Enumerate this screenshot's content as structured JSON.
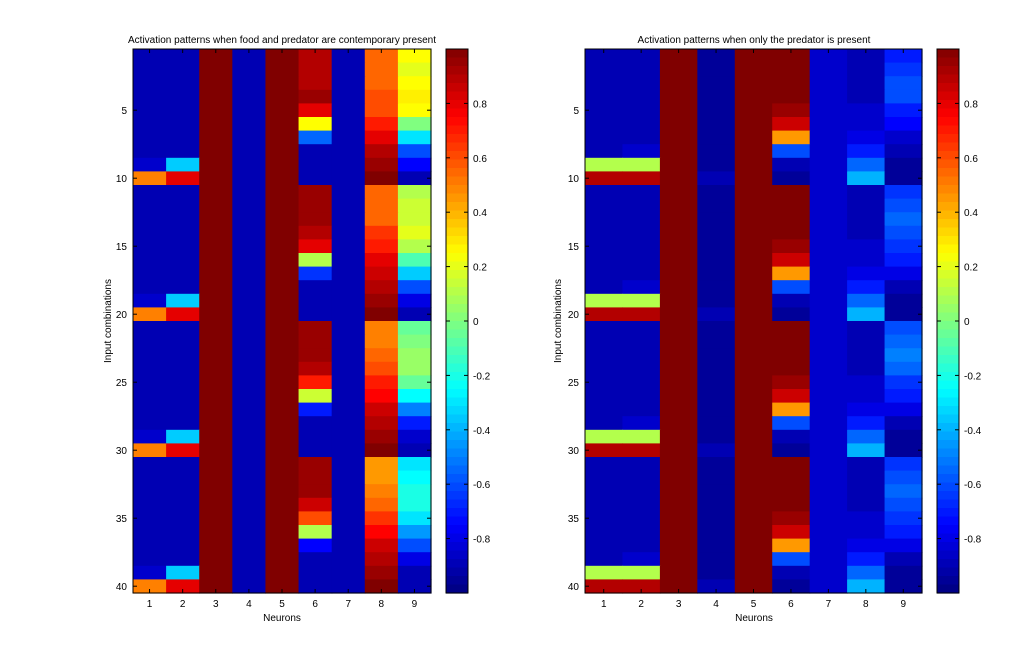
{
  "chart_data": [
    {
      "type": "heatmap",
      "title": "Activation patterns when food and predator are contemporary present",
      "xlabel": "Neurons",
      "ylabel": "Input combinations",
      "x": [
        1,
        2,
        3,
        4,
        5,
        6,
        7,
        8,
        9
      ],
      "y_ticks": [
        5,
        10,
        15,
        20,
        25,
        30,
        35,
        40
      ],
      "clim": [
        -1,
        1
      ],
      "colorbar_ticks": [
        -0.8,
        -0.6,
        -0.4,
        -0.2,
        0,
        0.2,
        0.4,
        0.6,
        0.8
      ],
      "colormap": "jet",
      "values": [
        [
          -0.9,
          -0.9,
          1,
          -0.9,
          1,
          0.9,
          -0.9,
          0.55,
          0.25
        ],
        [
          -0.9,
          -0.9,
          1,
          -0.9,
          1,
          0.9,
          -0.9,
          0.55,
          0.2
        ],
        [
          -0.9,
          -0.9,
          1,
          -0.9,
          1,
          0.9,
          -0.9,
          0.55,
          0.25
        ],
        [
          -0.9,
          -0.9,
          1,
          -0.9,
          1,
          0.95,
          -0.9,
          0.6,
          0.28
        ],
        [
          -0.9,
          -0.9,
          1,
          -0.9,
          1,
          0.8,
          -0.9,
          0.6,
          0.25
        ],
        [
          -0.9,
          -0.9,
          1,
          -0.9,
          1,
          0.25,
          -0.9,
          0.7,
          0.0
        ],
        [
          -0.9,
          -0.9,
          1,
          -0.9,
          1,
          -0.55,
          -0.9,
          0.8,
          -0.3
        ],
        [
          -0.9,
          -0.9,
          1,
          -0.9,
          1,
          -0.9,
          -0.9,
          0.9,
          -0.6
        ],
        [
          -0.85,
          -0.35,
          1,
          -0.9,
          1,
          -0.9,
          -0.9,
          0.95,
          -0.75
        ],
        [
          0.5,
          0.8,
          1,
          -0.9,
          1,
          -0.9,
          -0.9,
          1,
          -0.9
        ],
        [
          -0.9,
          -0.9,
          1,
          -0.9,
          1,
          0.95,
          -0.9,
          0.55,
          0.1
        ],
        [
          -0.9,
          -0.9,
          1,
          -0.9,
          1,
          0.95,
          -0.9,
          0.55,
          0.15
        ],
        [
          -0.9,
          -0.9,
          1,
          -0.9,
          1,
          0.95,
          -0.9,
          0.55,
          0.15
        ],
        [
          -0.9,
          -0.9,
          1,
          -0.9,
          1,
          0.9,
          -0.9,
          0.65,
          0.2
        ],
        [
          -0.9,
          -0.9,
          1,
          -0.9,
          1,
          0.8,
          -0.9,
          0.7,
          0.1
        ],
        [
          -0.9,
          -0.9,
          1,
          -0.9,
          1,
          0.1,
          -0.9,
          0.8,
          -0.1
        ],
        [
          -0.9,
          -0.9,
          1,
          -0.9,
          1,
          -0.65,
          -0.9,
          0.85,
          -0.35
        ],
        [
          -0.9,
          -0.9,
          1,
          -0.9,
          1,
          -0.9,
          -0.9,
          0.9,
          -0.6
        ],
        [
          -0.85,
          -0.35,
          1,
          -0.9,
          1,
          -0.9,
          -0.9,
          0.95,
          -0.8
        ],
        [
          0.5,
          0.8,
          1,
          -0.9,
          1,
          -0.9,
          -0.9,
          1,
          -0.9
        ],
        [
          -0.9,
          -0.9,
          1,
          -0.9,
          1,
          0.95,
          -0.9,
          0.5,
          -0.05
        ],
        [
          -0.9,
          -0.9,
          1,
          -0.9,
          1,
          0.95,
          -0.9,
          0.5,
          0.0
        ],
        [
          -0.9,
          -0.9,
          1,
          -0.9,
          1,
          0.95,
          -0.9,
          0.55,
          0.05
        ],
        [
          -0.9,
          -0.9,
          1,
          -0.9,
          1,
          0.9,
          -0.9,
          0.6,
          0.05
        ],
        [
          -0.9,
          -0.9,
          1,
          -0.9,
          1,
          0.7,
          -0.9,
          0.7,
          -0.05
        ],
        [
          -0.9,
          -0.9,
          1,
          -0.9,
          1,
          0.15,
          -0.9,
          0.75,
          -0.25
        ],
        [
          -0.9,
          -0.9,
          1,
          -0.9,
          1,
          -0.7,
          -0.9,
          0.85,
          -0.5
        ],
        [
          -0.9,
          -0.9,
          1,
          -0.9,
          1,
          -0.9,
          -0.9,
          0.9,
          -0.7
        ],
        [
          -0.85,
          -0.35,
          1,
          -0.9,
          1,
          -0.9,
          -0.9,
          0.95,
          -0.85
        ],
        [
          0.5,
          0.8,
          1,
          -0.9,
          1,
          -0.9,
          -0.9,
          1,
          -0.9
        ],
        [
          -0.9,
          -0.9,
          1,
          -0.9,
          1,
          0.95,
          -0.9,
          0.45,
          -0.3
        ],
        [
          -0.9,
          -0.9,
          1,
          -0.9,
          1,
          0.95,
          -0.9,
          0.45,
          -0.25
        ],
        [
          -0.9,
          -0.9,
          1,
          -0.9,
          1,
          0.95,
          -0.9,
          0.5,
          -0.2
        ],
        [
          -0.9,
          -0.9,
          1,
          -0.9,
          1,
          0.85,
          -0.9,
          0.55,
          -0.2
        ],
        [
          -0.9,
          -0.9,
          1,
          -0.9,
          1,
          0.6,
          -0.9,
          0.65,
          -0.3
        ],
        [
          -0.9,
          -0.9,
          1,
          -0.9,
          1,
          0.1,
          -0.9,
          0.75,
          -0.45
        ],
        [
          -0.9,
          -0.9,
          1,
          -0.9,
          1,
          -0.75,
          -0.9,
          0.85,
          -0.6
        ],
        [
          -0.9,
          -0.9,
          1,
          -0.9,
          1,
          -0.9,
          -0.9,
          0.9,
          -0.8
        ],
        [
          -0.85,
          -0.35,
          1,
          -0.9,
          1,
          -0.9,
          -0.9,
          0.95,
          -0.9
        ],
        [
          0.5,
          0.8,
          1,
          -0.9,
          1,
          -0.9,
          -0.9,
          1,
          -0.9
        ]
      ]
    },
    {
      "type": "heatmap",
      "title": "Activation patterns when only the predator is present",
      "xlabel": "Neurons",
      "ylabel": "Input combinations",
      "x": [
        1,
        2,
        3,
        4,
        5,
        6,
        7,
        8,
        9
      ],
      "y_ticks": [
        5,
        10,
        15,
        20,
        25,
        30,
        35,
        40
      ],
      "clim": [
        -1,
        1
      ],
      "colorbar_ticks": [
        -0.8,
        -0.6,
        -0.4,
        -0.2,
        0,
        0.2,
        0.4,
        0.6,
        0.8
      ],
      "colormap": "jet",
      "values": [
        [
          -0.9,
          -0.9,
          1,
          -0.95,
          1,
          1,
          -0.85,
          -0.9,
          -0.7
        ],
        [
          -0.9,
          -0.9,
          1,
          -0.95,
          1,
          1,
          -0.85,
          -0.9,
          -0.65
        ],
        [
          -0.9,
          -0.9,
          1,
          -0.95,
          1,
          1,
          -0.85,
          -0.9,
          -0.6
        ],
        [
          -0.9,
          -0.9,
          1,
          -0.95,
          1,
          1,
          -0.85,
          -0.9,
          -0.6
        ],
        [
          -0.9,
          -0.9,
          1,
          -0.95,
          1,
          0.95,
          -0.85,
          -0.85,
          -0.7
        ],
        [
          -0.9,
          -0.9,
          1,
          -0.95,
          1,
          0.85,
          -0.85,
          -0.85,
          -0.75
        ],
        [
          -0.9,
          -0.9,
          1,
          -0.95,
          1,
          0.45,
          -0.85,
          -0.8,
          -0.85
        ],
        [
          -0.9,
          -0.85,
          1,
          -0.95,
          1,
          -0.6,
          -0.85,
          -0.7,
          -0.9
        ],
        [
          0.1,
          0.1,
          1,
          -0.95,
          1,
          -0.9,
          -0.85,
          -0.55,
          -0.95
        ],
        [
          0.9,
          0.9,
          1,
          -0.9,
          1,
          -0.95,
          -0.85,
          -0.4,
          -0.95
        ],
        [
          -0.9,
          -0.9,
          1,
          -0.95,
          1,
          1,
          -0.85,
          -0.9,
          -0.65
        ],
        [
          -0.9,
          -0.9,
          1,
          -0.95,
          1,
          1,
          -0.85,
          -0.9,
          -0.6
        ],
        [
          -0.9,
          -0.9,
          1,
          -0.95,
          1,
          1,
          -0.85,
          -0.9,
          -0.55
        ],
        [
          -0.9,
          -0.9,
          1,
          -0.95,
          1,
          1,
          -0.85,
          -0.9,
          -0.6
        ],
        [
          -0.9,
          -0.9,
          1,
          -0.95,
          1,
          0.95,
          -0.85,
          -0.85,
          -0.65
        ],
        [
          -0.9,
          -0.9,
          1,
          -0.95,
          1,
          0.85,
          -0.85,
          -0.85,
          -0.7
        ],
        [
          -0.9,
          -0.9,
          1,
          -0.95,
          1,
          0.45,
          -0.85,
          -0.8,
          -0.8
        ],
        [
          -0.9,
          -0.85,
          1,
          -0.95,
          1,
          -0.6,
          -0.85,
          -0.7,
          -0.9
        ],
        [
          0.1,
          0.1,
          1,
          -0.95,
          1,
          -0.9,
          -0.85,
          -0.55,
          -0.95
        ],
        [
          0.9,
          0.9,
          1,
          -0.9,
          1,
          -0.95,
          -0.85,
          -0.4,
          -0.95
        ],
        [
          -0.9,
          -0.9,
          1,
          -0.95,
          1,
          1,
          -0.85,
          -0.9,
          -0.6
        ],
        [
          -0.9,
          -0.9,
          1,
          -0.95,
          1,
          1,
          -0.85,
          -0.9,
          -0.55
        ],
        [
          -0.9,
          -0.9,
          1,
          -0.95,
          1,
          1,
          -0.85,
          -0.9,
          -0.5
        ],
        [
          -0.9,
          -0.9,
          1,
          -0.95,
          1,
          1,
          -0.85,
          -0.9,
          -0.55
        ],
        [
          -0.9,
          -0.9,
          1,
          -0.95,
          1,
          0.95,
          -0.85,
          -0.85,
          -0.65
        ],
        [
          -0.9,
          -0.9,
          1,
          -0.95,
          1,
          0.85,
          -0.85,
          -0.85,
          -0.7
        ],
        [
          -0.9,
          -0.9,
          1,
          -0.95,
          1,
          0.45,
          -0.85,
          -0.8,
          -0.8
        ],
        [
          -0.9,
          -0.85,
          1,
          -0.95,
          1,
          -0.6,
          -0.85,
          -0.7,
          -0.9
        ],
        [
          0.1,
          0.1,
          1,
          -0.95,
          1,
          -0.9,
          -0.85,
          -0.55,
          -0.95
        ],
        [
          0.9,
          0.9,
          1,
          -0.9,
          1,
          -0.95,
          -0.85,
          -0.4,
          -0.95
        ],
        [
          -0.9,
          -0.9,
          1,
          -0.95,
          1,
          1,
          -0.85,
          -0.9,
          -0.65
        ],
        [
          -0.9,
          -0.9,
          1,
          -0.95,
          1,
          1,
          -0.85,
          -0.9,
          -0.6
        ],
        [
          -0.9,
          -0.9,
          1,
          -0.95,
          1,
          1,
          -0.85,
          -0.9,
          -0.55
        ],
        [
          -0.9,
          -0.9,
          1,
          -0.95,
          1,
          1,
          -0.85,
          -0.9,
          -0.6
        ],
        [
          -0.9,
          -0.9,
          1,
          -0.95,
          1,
          0.95,
          -0.85,
          -0.85,
          -0.65
        ],
        [
          -0.9,
          -0.9,
          1,
          -0.95,
          1,
          0.85,
          -0.85,
          -0.85,
          -0.7
        ],
        [
          -0.9,
          -0.9,
          1,
          -0.95,
          1,
          0.45,
          -0.85,
          -0.8,
          -0.8
        ],
        [
          -0.9,
          -0.85,
          1,
          -0.95,
          1,
          -0.6,
          -0.85,
          -0.7,
          -0.9
        ],
        [
          0.1,
          0.1,
          1,
          -0.95,
          1,
          -0.9,
          -0.85,
          -0.55,
          -0.95
        ],
        [
          0.9,
          0.9,
          1,
          -0.9,
          1,
          -0.95,
          -0.85,
          -0.4,
          -0.95
        ]
      ]
    }
  ]
}
